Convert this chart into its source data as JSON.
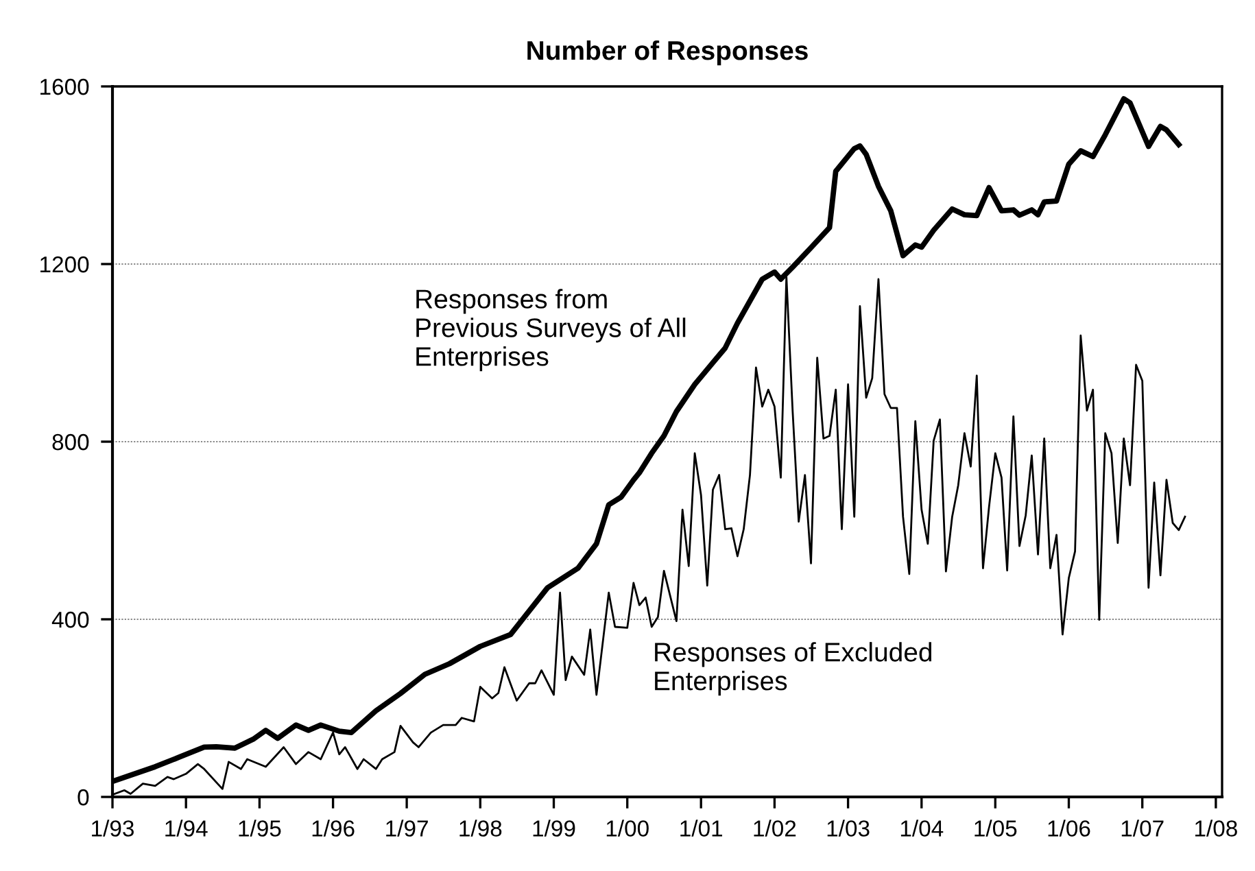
{
  "chart_data": {
    "type": "line",
    "title": "Number of Responses",
    "xlim": [
      "1993-01",
      "2008-02"
    ],
    "ylim": [
      0,
      1600
    ],
    "yticks": [
      0,
      400,
      800,
      1200,
      1600
    ],
    "xticks": [
      {
        "value": "1993-01",
        "label": "1/93"
      },
      {
        "value": "1994-01",
        "label": "1/94"
      },
      {
        "value": "1995-01",
        "label": "1/95"
      },
      {
        "value": "1996-01",
        "label": "1/96"
      },
      {
        "value": "1997-01",
        "label": "1/97"
      },
      {
        "value": "1998-01",
        "label": "1/98"
      },
      {
        "value": "1999-01",
        "label": "1/99"
      },
      {
        "value": "2000-01",
        "label": "1/00"
      },
      {
        "value": "2001-01",
        "label": "1/01"
      },
      {
        "value": "2002-01",
        "label": "1/02"
      },
      {
        "value": "2003-01",
        "label": "1/03"
      },
      {
        "value": "2004-01",
        "label": "1/04"
      },
      {
        "value": "2005-01",
        "label": "1/05"
      },
      {
        "value": "2006-01",
        "label": "1/06"
      },
      {
        "value": "2007-01",
        "label": "1/07"
      },
      {
        "value": "2008-01",
        "label": "1/08"
      }
    ],
    "grid": "y",
    "marker": "none",
    "line_style": "solid",
    "series": [
      {
        "name": "Responses from Previous Surveys of All Enterprises",
        "color": "#000000",
        "x": [
          "1993-01",
          "1993-08",
          "1993-12",
          "1994-04",
          "1994-06",
          "1994-09",
          "1994-12",
          "1995-02",
          "1995-04",
          "1995-07",
          "1995-09",
          "1995-11",
          "1996-02",
          "1996-04",
          "1996-08",
          "1996-12",
          "1997-04",
          "1997-08",
          "1998-01",
          "1998-06",
          "1998-12",
          "1999-05",
          "1999-08",
          "1999-10",
          "1999-12",
          "2000-02",
          "2000-03",
          "2000-05",
          "2000-07",
          "2000-09",
          "2000-12",
          "2001-03",
          "2001-05",
          "2001-07",
          "2001-11",
          "2002-01",
          "2002-02",
          "2002-04",
          "2002-07",
          "2002-10",
          "2002-11",
          "2003-02",
          "2003-03",
          "2003-04",
          "2003-06",
          "2003-08",
          "2003-10",
          "2003-12",
          "2004-01",
          "2004-03",
          "2004-06",
          "2004-08",
          "2004-10",
          "2004-12",
          "2005-02",
          "2005-04",
          "2005-05",
          "2005-07",
          "2005-08",
          "2005-09",
          "2005-11",
          "2006-01",
          "2006-03",
          "2006-05",
          "2006-07",
          "2006-10",
          "2006-11",
          "2007-02",
          "2007-04",
          "2007-05",
          "2007-07"
        ],
        "values": [
          35,
          68,
          90,
          112,
          113,
          110,
          130,
          150,
          132,
          162,
          150,
          162,
          148,
          145,
          194,
          233,
          276,
          300,
          339,
          366,
          471,
          515,
          570,
          658,
          675,
          714,
          730,
          774,
          813,
          868,
          929,
          978,
          1011,
          1067,
          1166,
          1182,
          1166,
          1193,
          1237,
          1282,
          1409,
          1460,
          1466,
          1447,
          1375,
          1320,
          1219,
          1243,
          1238,
          1276,
          1324,
          1311,
          1309,
          1372,
          1320,
          1322,
          1310,
          1322,
          1311,
          1340,
          1342,
          1425,
          1455,
          1442,
          1491,
          1572,
          1563,
          1465,
          1510,
          1502,
          1469
        ]
      },
      {
        "name": "Responses of Excluded Enterprises",
        "color": "#000000",
        "x": [
          "1993-01",
          "1993-03",
          "1993-04",
          "1993-06",
          "1993-08",
          "1993-10",
          "1993-11",
          "1994-01",
          "1994-03",
          "1994-04",
          "1994-07",
          "1994-08",
          "1994-10",
          "1994-11",
          "1995-02",
          "1995-05",
          "1995-07",
          "1995-09",
          "1995-11",
          "1996-01",
          "1996-02",
          "1996-03",
          "1996-05",
          "1996-06",
          "1996-08",
          "1996-09",
          "1996-11",
          "1996-12",
          "1997-02",
          "1997-03",
          "1997-05",
          "1997-07",
          "1997-09",
          "1997-10",
          "1997-12",
          "1998-01",
          "1998-03",
          "1998-04",
          "1998-05",
          "1998-07",
          "1998-09",
          "1998-10",
          "1998-11",
          "1999-01",
          "1999-02",
          "1999-03",
          "1999-04",
          "1999-06",
          "1999-07",
          "1999-08",
          "1999-10",
          "1999-11",
          "2000-01",
          "2000-02",
          "2000-03",
          "2000-04",
          "2000-05",
          "2000-06",
          "2000-07",
          "2000-09",
          "2000-10",
          "2000-11",
          "2000-12",
          "2001-01",
          "2001-02",
          "2001-03",
          "2001-04",
          "2001-05",
          "2001-06",
          "2001-07",
          "2001-08",
          "2001-09",
          "2001-10",
          "2001-11",
          "2001-12",
          "2002-01",
          "2002-02",
          "2002-03",
          "2002-04",
          "2002-05",
          "2002-06",
          "2002-07",
          "2002-08",
          "2002-09",
          "2002-10",
          "2002-11",
          "2002-12",
          "2003-01",
          "2003-02",
          "2003-03",
          "2003-04",
          "2003-05",
          "2003-06",
          "2003-07",
          "2003-08",
          "2003-09",
          "2003-10",
          "2003-11",
          "2003-12",
          "2004-01",
          "2004-02",
          "2004-03",
          "2004-04",
          "2004-05",
          "2004-06",
          "2004-07",
          "2004-08",
          "2004-09",
          "2004-10",
          "2004-11",
          "2004-12",
          "2005-01",
          "2005-02",
          "2005-03",
          "2005-04",
          "2005-05",
          "2005-06",
          "2005-07",
          "2005-08",
          "2005-09",
          "2005-10",
          "2005-11",
          "2005-12",
          "2006-01",
          "2006-02",
          "2006-03",
          "2006-04",
          "2006-05",
          "2006-06",
          "2006-07",
          "2006-08",
          "2006-09",
          "2006-10",
          "2006-11",
          "2006-12",
          "2007-01",
          "2007-02",
          "2007-03",
          "2007-04",
          "2007-05",
          "2007-06",
          "2007-07",
          "2007-08"
        ],
        "values": [
          5,
          15,
          7,
          30,
          25,
          45,
          40,
          52,
          74,
          63,
          18,
          79,
          63,
          85,
          68,
          112,
          74,
          101,
          85,
          145,
          96,
          112,
          63,
          85,
          63,
          85,
          101,
          160,
          123,
          112,
          145,
          162,
          162,
          178,
          170,
          248,
          222,
          234,
          292,
          217,
          256,
          256,
          285,
          230,
          460,
          263,
          316,
          275,
          377,
          230,
          460,
          383,
          381,
          482,
          432,
          449,
          383,
          405,
          509,
          396,
          647,
          520,
          774,
          680,
          476,
          692,
          725,
          603,
          605,
          542,
          603,
          725,
          967,
          879,
          917,
          879,
          719,
          1171,
          868,
          620,
          725,
          526,
          989,
          807,
          813,
          917,
          603,
          929,
          631,
          1105,
          899,
          943,
          1166,
          907,
          876,
          876,
          631,
          502,
          846,
          647,
          570,
          802,
          850,
          508,
          631,
          702,
          819,
          744,
          949,
          515,
          653,
          774,
          719,
          510,
          857,
          565,
          634,
          769,
          546,
          807,
          515,
          590,
          366,
          493,
          553,
          1039,
          870,
          917,
          399,
          819,
          774,
          572,
          807,
          702,
          973,
          937,
          471,
          708,
          499,
          714,
          617,
          601,
          631
        ]
      }
    ]
  }
}
